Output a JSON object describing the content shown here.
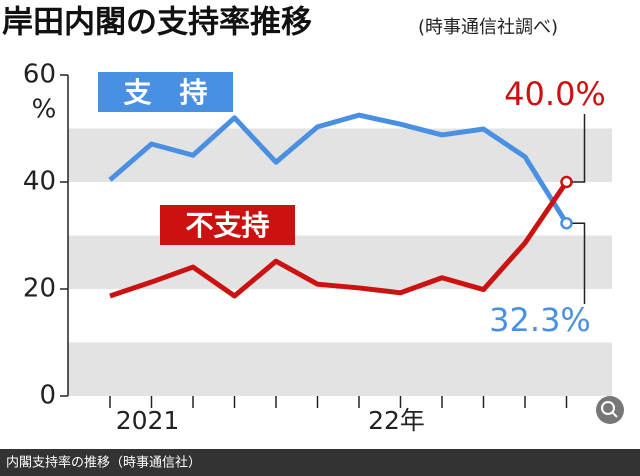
{
  "chart_data": {
    "type": "line",
    "title": "岸田内閣の支持率推移",
    "subtitle": "(時事通信社調べ)",
    "y_label": "%",
    "caption": "内閣支持率の推移（時事通信社）",
    "categories": [
      null,
      "2021",
      null,
      null,
      null,
      null,
      null,
      "22年",
      null,
      null,
      null,
      null
    ],
    "series": [
      {
        "name": "支　持",
        "color": "#4a90e2",
        "values": [
          40.4,
          47.1,
          45.0,
          52.0,
          43.7,
          50.3,
          52.5,
          50.8,
          48.8,
          49.9,
          44.7,
          32.3
        ],
        "value_labels": [
          null,
          null,
          null,
          null,
          null,
          null,
          null,
          null,
          null,
          null,
          null,
          "32.3%"
        ]
      },
      {
        "name": "不支持",
        "color": "#cc1111",
        "values": [
          18.7,
          21.3,
          24.1,
          18.7,
          25.2,
          20.9,
          20.2,
          19.3,
          22.1,
          19.9,
          28.6,
          40.0
        ],
        "value_labels": [
          null,
          null,
          null,
          null,
          null,
          null,
          null,
          null,
          null,
          null,
          null,
          "40.0%"
        ]
      }
    ],
    "ylim": [
      0,
      60
    ],
    "yticks": [
      0,
      20,
      40,
      60
    ],
    "grid": true
  }
}
